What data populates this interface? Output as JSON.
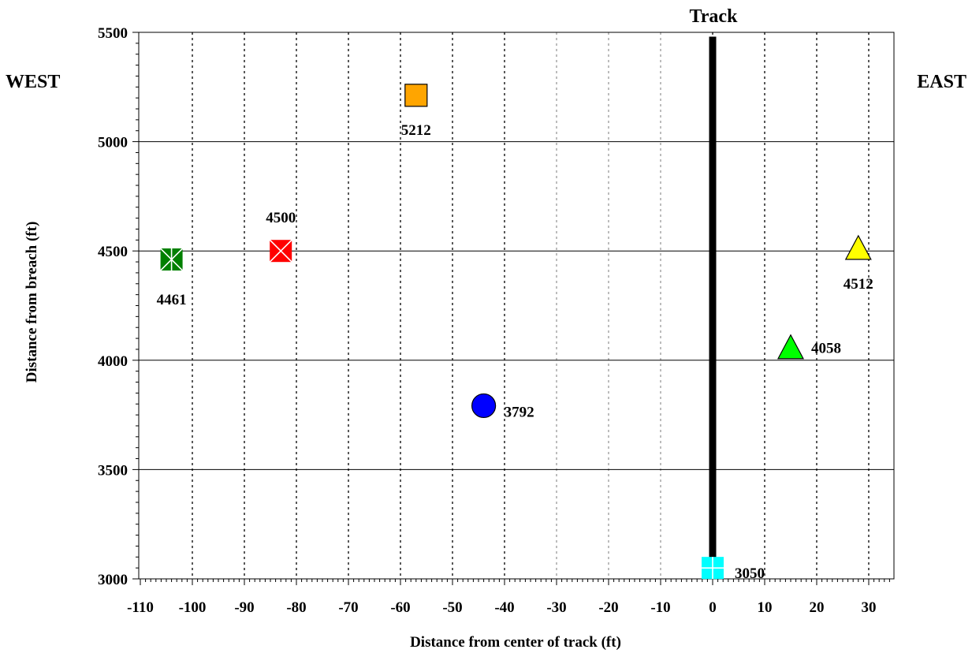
{
  "chart_data": {
    "type": "scatter",
    "title": "",
    "xlabel": "Distance from center of track (ft)",
    "ylabel": "Distance from breach (ft)",
    "xlim": [
      -110,
      35
    ],
    "ylim": [
      3000,
      5500
    ],
    "xticks": [
      -110,
      -100,
      -90,
      -80,
      -70,
      -60,
      -50,
      -40,
      -30,
      -20,
      -10,
      0,
      10,
      20,
      30
    ],
    "yticks": [
      3000,
      3500,
      4000,
      4500,
      5000,
      5500
    ],
    "grid": {
      "vertical": "dotted",
      "horizontal": "solid"
    },
    "side_labels": {
      "west": "WEST",
      "east": "EAST"
    },
    "track": {
      "label": "Track",
      "x": 0,
      "y_from": 3000,
      "y_to": 5480,
      "color": "#000000"
    },
    "points": [
      {
        "x": -57,
        "y": 5212,
        "label": "5212",
        "marker": "square",
        "color": "#ffa500"
      },
      {
        "x": -83,
        "y": 4500,
        "label": "4500",
        "marker": "square-x",
        "color": "#ff0000"
      },
      {
        "x": -104,
        "y": 4461,
        "label": "4461",
        "marker": "square-x-cross",
        "color": "#008000"
      },
      {
        "x": -44,
        "y": 3792,
        "label": "3792",
        "marker": "circle",
        "color": "#0000ff"
      },
      {
        "x": 28,
        "y": 4512,
        "label": "4512",
        "marker": "triangle",
        "color": "#ffff00"
      },
      {
        "x": 15,
        "y": 4058,
        "label": "4058",
        "marker": "triangle",
        "color": "#00ff00"
      },
      {
        "x": 0,
        "y": 3050,
        "label": "3050",
        "marker": "square-cross",
        "color": "#00ffff"
      }
    ]
  }
}
